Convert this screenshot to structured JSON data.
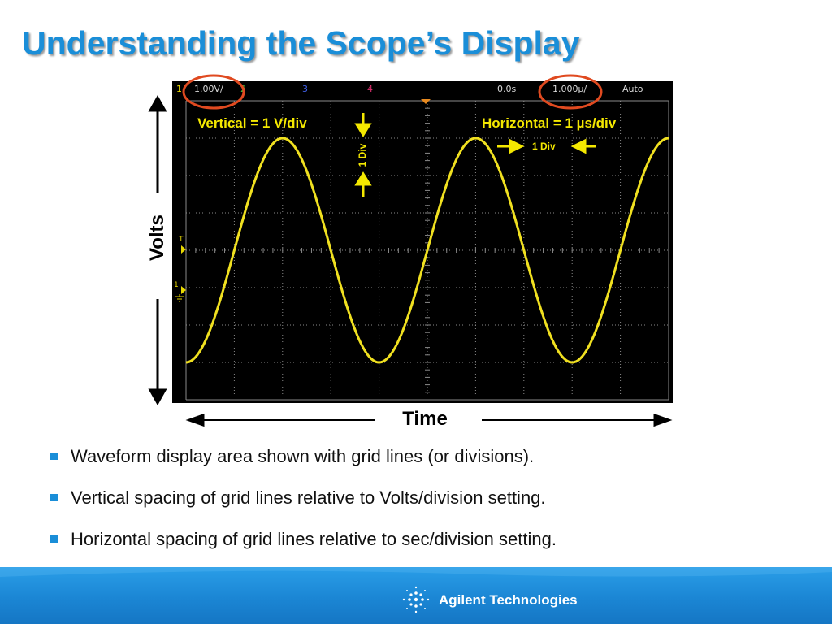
{
  "slide": {
    "title": "Understanding the Scope’s Display"
  },
  "scope": {
    "status": {
      "ch1_num": "1",
      "ch1_scale": "1.00V/",
      "ch2": "2",
      "ch3": "3",
      "ch4": "4",
      "delay": "0.0s",
      "timebase": "1.000µ/",
      "trigger_mode": "Auto"
    },
    "trigger_marker": "T",
    "ground_marker": "1",
    "colors": {
      "trace": "#f0e020",
      "grid": "#8a8a8a",
      "annotation": "#f4e800",
      "callout": "#e04a20"
    }
  },
  "annotations": {
    "vertical": "Vertical = 1 V/div",
    "horizontal": "Horizontal = 1 µs/div",
    "one_div_vertical": "1 Div",
    "one_div_horizontal": "1 Div"
  },
  "axes": {
    "y_label": "Volts",
    "x_label": "Time"
  },
  "waveform": {
    "amplitude_div": 3,
    "period_div": 4,
    "visible_divisions_x": 10,
    "visible_divisions_y": 8
  },
  "bullets": [
    "Waveform display area shown with grid lines (or divisions).",
    "Vertical spacing of grid lines relative to Volts/division setting.",
    "Horizontal spacing of grid lines relative to sec/division setting."
  ],
  "footer": {
    "brand": "Agilent Technologies",
    "logo_icon": "agilent-spark-icon"
  }
}
